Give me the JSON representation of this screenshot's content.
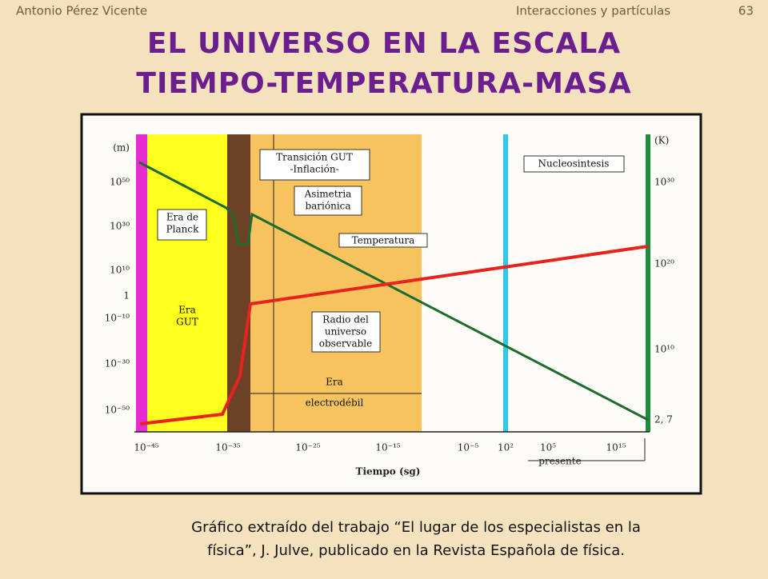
{
  "header": {
    "author": "Antonio Pérez Vicente",
    "topic": "Interacciones y partículas",
    "page": "63"
  },
  "title": [
    "EL UNIVERSO EN LA ESCALA",
    "TIEMPO-TEMPERATURA-MASA"
  ],
  "figure": {
    "left_axis": [
      "(m)",
      "10⁵⁰",
      "10³⁰",
      "10¹⁰",
      "1",
      "10⁻¹⁰",
      "10⁻³⁰",
      "10⁻⁵⁰"
    ],
    "right_axis": [
      "(K)",
      "10³⁰",
      "10²⁰",
      "10¹⁰",
      "2, 7"
    ],
    "x_axis": [
      "10⁻⁴⁵",
      "10⁻³⁵",
      "10⁻²⁵",
      "10⁻¹⁵",
      "10⁻⁵",
      "10²",
      "10⁵",
      "10¹⁵"
    ],
    "x_axis_title": "Tiempo (sg)",
    "present_label": "presente",
    "annotations": [
      [
        "Era de",
        "Planck"
      ],
      [
        "Era",
        "GUT"
      ],
      [
        "Transición GUT",
        "-Inflación-"
      ],
      [
        "Asimetria",
        "bariónica"
      ],
      [
        "Temperatura"
      ],
      [
        "Nucleosintesis"
      ],
      [
        "Radio del",
        "universo",
        "observable"
      ],
      [
        "Era",
        "electrodébil"
      ]
    ]
  },
  "caption": [
    "Gráfico extraído del trabajo “El lugar de los especialistas en la",
    "física”, J. Julve, publicado en la Revista Española de física."
  ]
}
